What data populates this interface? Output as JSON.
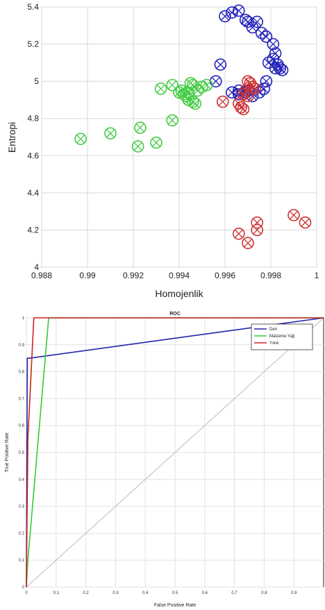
{
  "chart_data": [
    {
      "type": "scatter",
      "title": "",
      "xlabel": "Homojenlik",
      "ylabel": "Entropi",
      "xlim": [
        0.988,
        1.0
      ],
      "ylim": [
        4.0,
        5.4
      ],
      "xticks": [
        "0.988",
        "0.99",
        "0.992",
        "0.994",
        "0.996",
        "0.998",
        "1"
      ],
      "yticks": [
        "4",
        "4.2",
        "4.4",
        "4.6",
        "4.8",
        "5",
        "5.2",
        "5.4"
      ],
      "grid": true,
      "marker": "circle-x",
      "series": [
        {
          "color": "#2222bb",
          "points": [
            [
              0.996,
              5.35
            ],
            [
              0.9963,
              5.37
            ],
            [
              0.9966,
              5.38
            ],
            [
              0.9969,
              5.33
            ],
            [
              0.997,
              5.32
            ],
            [
              0.9972,
              5.29
            ],
            [
              0.9974,
              5.32
            ],
            [
              0.9976,
              5.26
            ],
            [
              0.9978,
              5.24
            ],
            [
              0.9981,
              5.2
            ],
            [
              0.9982,
              5.15
            ],
            [
              0.9981,
              5.12
            ],
            [
              0.9979,
              5.1
            ],
            [
              0.9983,
              5.09
            ],
            [
              0.9982,
              5.07
            ],
            [
              0.9984,
              5.07
            ],
            [
              0.9985,
              5.06
            ],
            [
              0.9978,
              5.0
            ],
            [
              0.9977,
              4.96
            ],
            [
              0.9975,
              4.94
            ],
            [
              0.9972,
              4.92
            ],
            [
              0.9969,
              4.94
            ],
            [
              0.9966,
              4.95
            ],
            [
              0.9963,
              4.94
            ],
            [
              0.9958,
              5.09
            ],
            [
              0.9956,
              5.0
            ],
            [
              0.9966,
              4.93
            ],
            [
              0.997,
              4.95
            ]
          ]
        },
        {
          "color": "#44cc44",
          "points": [
            [
              0.9897,
              4.69
            ],
            [
              0.991,
              4.72
            ],
            [
              0.9923,
              4.75
            ],
            [
              0.9922,
              4.65
            ],
            [
              0.993,
              4.67
            ],
            [
              0.9937,
              4.79
            ],
            [
              0.9932,
              4.96
            ],
            [
              0.9937,
              4.98
            ],
            [
              0.994,
              4.94
            ],
            [
              0.9942,
              4.93
            ],
            [
              0.9943,
              4.92
            ],
            [
              0.9945,
              4.99
            ],
            [
              0.9946,
              4.98
            ],
            [
              0.9944,
              4.9
            ],
            [
              0.9946,
              4.89
            ],
            [
              0.9947,
              4.88
            ],
            [
              0.9948,
              4.95
            ],
            [
              0.995,
              4.97
            ],
            [
              0.9952,
              4.98
            ],
            [
              0.9941,
              4.95
            ],
            [
              0.9944,
              4.94
            ]
          ]
        },
        {
          "color": "#cc3333",
          "points": [
            [
              0.997,
              5.0
            ],
            [
              0.9971,
              4.99
            ],
            [
              0.9972,
              4.97
            ],
            [
              0.9973,
              4.96
            ],
            [
              0.9969,
              4.95
            ],
            [
              0.9968,
              4.93
            ],
            [
              0.9966,
              4.88
            ],
            [
              0.9967,
              4.86
            ],
            [
              0.9968,
              4.85
            ],
            [
              0.997,
              4.92
            ],
            [
              0.9959,
              4.89
            ],
            [
              0.9966,
              4.18
            ],
            [
              0.997,
              4.13
            ],
            [
              0.9974,
              4.2
            ],
            [
              0.9974,
              4.24
            ],
            [
              0.999,
              4.28
            ],
            [
              0.9995,
              4.24
            ]
          ]
        }
      ]
    },
    {
      "type": "line",
      "title": "ROC",
      "xlabel": "False Positive Rate",
      "ylabel": "True Positive Rate",
      "xlim": [
        0,
        1
      ],
      "ylim": [
        0,
        1
      ],
      "xticks": [
        "0",
        "0.1",
        "0.2",
        "0.3",
        "0.4",
        "0.5",
        "0.6",
        "0.7",
        "0.8",
        "0.9"
      ],
      "yticks": [
        "0",
        "0.1",
        "0.2",
        "0.3",
        "0.4",
        "0.5",
        "0.6",
        "0.7",
        "0.8",
        "0.9",
        "1"
      ],
      "grid": true,
      "legend": "top-right",
      "series": [
        {
          "name": "Deri",
          "color": "#2222aa",
          "x": [
            0,
            0.003,
            0.01,
            1.0
          ],
          "y": [
            0,
            0.85,
            0.85,
            1.0
          ]
        },
        {
          "name": "Malzeme Yağ",
          "color": "#33cc33",
          "x": [
            0,
            0.005,
            0.075,
            0.08,
            1.0
          ],
          "y": [
            0,
            0.1,
            1.0,
            1.0,
            1.0
          ]
        },
        {
          "name": "Yıkık",
          "color": "#cc2222",
          "x": [
            0,
            0.005,
            0.025,
            0.03,
            1.0
          ],
          "y": [
            0,
            0.55,
            1.0,
            1.0,
            1.0
          ]
        },
        {
          "name": "",
          "color": "#bbbbbb",
          "x": [
            0,
            1
          ],
          "y": [
            0,
            1
          ]
        }
      ]
    }
  ]
}
